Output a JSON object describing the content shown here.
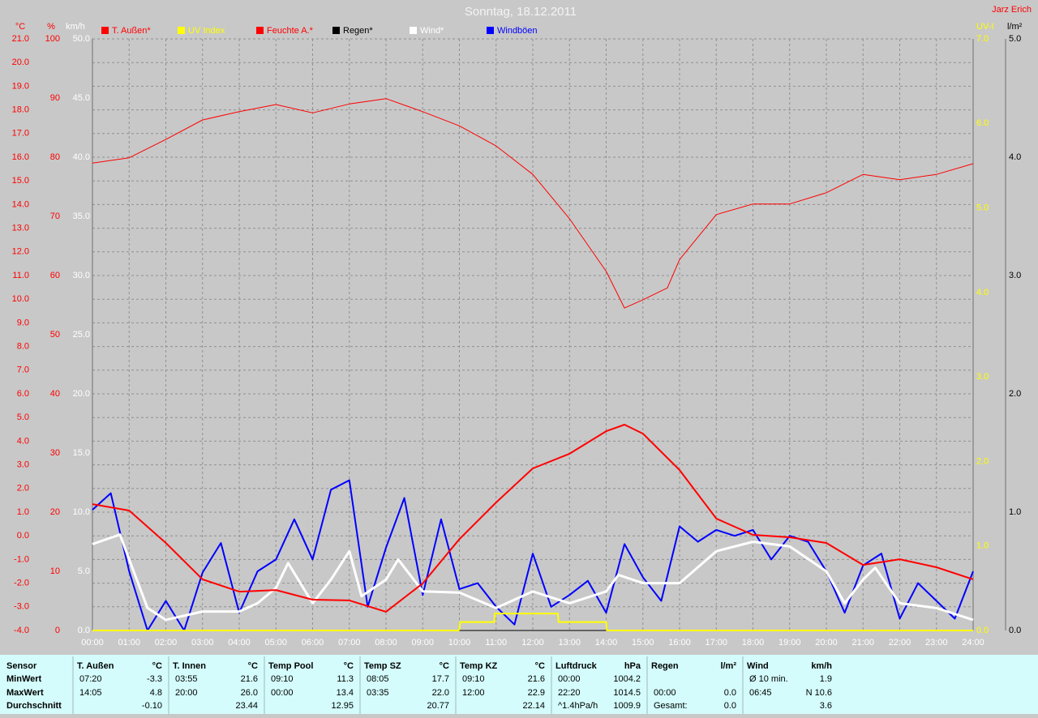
{
  "chart_data": {
    "type": "line",
    "title": "Sonntag, 18.12.2011",
    "owner": "Jarz Erich",
    "xlim": [
      "00:00",
      "24:00"
    ],
    "xticks": [
      "00:00",
      "01:00",
      "02:00",
      "03:00",
      "04:00",
      "05:00",
      "06:00",
      "07:00",
      "08:00",
      "09:00",
      "10:00",
      "11:00",
      "12:00",
      "13:00",
      "14:00",
      "15:00",
      "16:00",
      "17:00",
      "18:00",
      "19:00",
      "20:00",
      "21:00",
      "22:00",
      "23:00",
      "24:00"
    ],
    "axes": [
      {
        "label": "°C",
        "color": "#ff0000",
        "side": "left",
        "grid": true,
        "lim": [
          -4,
          21
        ],
        "ticks": [
          {
            "value": -4,
            "label": "-4.0"
          },
          {
            "value": -3,
            "label": "-3.0"
          },
          {
            "value": -2,
            "label": "-2.0"
          },
          {
            "value": -1,
            "label": "-1.0"
          },
          {
            "value": 0,
            "label": "0.0"
          },
          {
            "value": 1,
            "label": "1.0"
          },
          {
            "value": 2,
            "label": "2.0"
          },
          {
            "value": 3,
            "label": "3.0"
          },
          {
            "value": 4,
            "label": "4.0"
          },
          {
            "value": 5,
            "label": "5.0"
          },
          {
            "value": 6,
            "label": "6.0"
          },
          {
            "value": 7,
            "label": "7.0"
          },
          {
            "value": 8,
            "label": "8.0"
          },
          {
            "value": 9,
            "label": "9.0"
          },
          {
            "value": 10,
            "label": "10.0"
          },
          {
            "value": 11,
            "label": "11.0"
          },
          {
            "value": 12,
            "label": "12.0"
          },
          {
            "value": 13,
            "label": "13.0"
          },
          {
            "value": 14,
            "label": "14.0"
          },
          {
            "value": 15,
            "label": "15.0"
          },
          {
            "value": 16,
            "label": "16.0"
          },
          {
            "value": 17,
            "label": "17.0"
          },
          {
            "value": 18,
            "label": "18.0"
          },
          {
            "value": 19,
            "label": "19.0"
          },
          {
            "value": 20,
            "label": "20.0"
          },
          {
            "value": 21,
            "label": "21.0"
          }
        ]
      },
      {
        "label": "%",
        "color": "#ff0000",
        "side": "left",
        "lim": [
          0,
          100
        ],
        "ticks": [
          0,
          10,
          20,
          30,
          40,
          50,
          60,
          70,
          80,
          90,
          100
        ]
      },
      {
        "label": "km/h",
        "color": "#ffffff",
        "side": "left",
        "lim": [
          0,
          50
        ],
        "ticks": [
          {
            "value": 0,
            "label": "0.0"
          },
          {
            "value": 5,
            "label": "5.0"
          },
          {
            "value": 10,
            "label": "10.0"
          },
          {
            "value": 15,
            "label": "15.0"
          },
          {
            "value": 20,
            "label": "20.0"
          },
          {
            "value": 25,
            "label": "25.0"
          },
          {
            "value": 30,
            "label": "30.0"
          },
          {
            "value": 35,
            "label": "35.0"
          },
          {
            "value": 40,
            "label": "40.0"
          },
          {
            "value": 45,
            "label": "45.0"
          },
          {
            "value": 50,
            "label": "50.0"
          }
        ]
      },
      {
        "label": "UV-I",
        "color": "#ffff00",
        "side": "right",
        "lim": [
          0,
          7
        ],
        "ticks": [
          {
            "value": 0,
            "label": "0.0"
          },
          {
            "value": 1,
            "label": "1.0"
          },
          {
            "value": 2,
            "label": "2.0"
          },
          {
            "value": 3,
            "label": "3.0"
          },
          {
            "value": 4,
            "label": "4.0"
          },
          {
            "value": 5,
            "label": "5.0"
          },
          {
            "value": 6,
            "label": "6.0"
          },
          {
            "value": 7,
            "label": "7.0"
          }
        ]
      },
      {
        "label": "l/m²",
        "color": "#000000",
        "side": "right",
        "lim": [
          0,
          5
        ],
        "ticks": [
          {
            "value": 0,
            "label": "0.0"
          },
          {
            "value": 1,
            "label": "1.0"
          },
          {
            "value": 2,
            "label": "2.0"
          },
          {
            "value": 3,
            "label": "3.0"
          },
          {
            "value": 4,
            "label": "4.0"
          },
          {
            "value": 5,
            "label": "5.0"
          }
        ]
      }
    ],
    "series": [
      {
        "name": "T. Außen*",
        "color": "#ff0000",
        "axis": 0,
        "width": 2,
        "x": [
          "00:00",
          "01:00",
          "02:00",
          "03:00",
          "04:00",
          "05:00",
          "06:00",
          "07:00",
          "08:00",
          "09:00",
          "10:00",
          "11:00",
          "12:00",
          "13:00",
          "14:00",
          "14:30",
          "15:00",
          "16:00",
          "17:00",
          "18:00",
          "19:00",
          "20:00",
          "21:00",
          "22:00",
          "23:00",
          "24:00"
        ],
        "values": [
          1.34,
          1.07,
          -0.3,
          -1.84,
          -2.36,
          -2.29,
          -2.7,
          -2.73,
          -3.21,
          -2.01,
          -0.14,
          1.41,
          2.85,
          3.47,
          4.42,
          4.7,
          4.32,
          2.78,
          0.73,
          0.04,
          -0.06,
          -0.3,
          -1.23,
          -0.99,
          -1.33,
          -1.84
        ]
      },
      {
        "name": "UV Index",
        "color": "#ffff00",
        "axis": 3,
        "width": 2,
        "x": [
          "00:00",
          "10:00",
          "10:01",
          "10:57",
          "10:58",
          "12:41",
          "12:42",
          "14:00",
          "14:01",
          "24:00"
        ],
        "values": [
          0,
          0,
          0.1,
          0.1,
          0.2,
          0.2,
          0.1,
          0.1,
          0,
          0
        ]
      },
      {
        "name": "Feuchte A.*",
        "color": "#ff0000",
        "axis": 1,
        "width": 1,
        "x": [
          "00:00",
          "01:00",
          "02:00",
          "03:00",
          "04:00",
          "05:00",
          "06:00",
          "07:00",
          "08:00",
          "09:00",
          "10:00",
          "11:00",
          "12:00",
          "13:00",
          "14:00",
          "14:30",
          "15:00",
          "15:40",
          "16:00",
          "17:00",
          "18:00",
          "19:00",
          "20:00",
          "21:00",
          "22:00",
          "23:00",
          "24:00"
        ],
        "values": [
          79,
          79.9,
          83,
          86.3,
          87.7,
          88.9,
          87.5,
          89,
          89.9,
          87.7,
          85.3,
          81.9,
          77.1,
          69.6,
          60.7,
          54.5,
          55.9,
          57.9,
          62.7,
          70.3,
          72.1,
          72.1,
          74,
          77.1,
          76.2,
          77.1,
          78.9
        ]
      },
      {
        "name": "Regen*",
        "color": "#000000",
        "axis": 4,
        "width": 1,
        "x": [
          "10:00",
          "14:00"
        ],
        "values": [
          0,
          0
        ]
      },
      {
        "name": "Wind*",
        "color": "#ffffff",
        "axis": 2,
        "width": 3,
        "x": [
          "00:00",
          "00:45",
          "01:00",
          "01:30",
          "02:00",
          "03:00",
          "04:00",
          "04:30",
          "05:00",
          "05:20",
          "06:00",
          "06:30",
          "07:00",
          "07:20",
          "08:00",
          "08:20",
          "09:00",
          "10:00",
          "11:00",
          "12:00",
          "13:00",
          "14:00",
          "14:20",
          "15:00",
          "16:00",
          "17:00",
          "18:00",
          "19:00",
          "20:00",
          "20:30",
          "21:00",
          "21:20",
          "22:00",
          "23:00",
          "24:00"
        ],
        "values": [
          7.3,
          8.1,
          6,
          1.9,
          0.9,
          1.6,
          1.6,
          2.3,
          3.6,
          5.7,
          2.3,
          4.3,
          6.7,
          2.9,
          4.3,
          6,
          3.3,
          3.2,
          1.9,
          3.3,
          2.3,
          3.3,
          4.7,
          4,
          4,
          6.7,
          7.5,
          7.1,
          5,
          2.3,
          4.3,
          5.3,
          2.3,
          1.9,
          0.9
        ]
      },
      {
        "name": "Windböen",
        "color": "#0000ff",
        "axis": 2,
        "width": 2,
        "x": [
          "00:00",
          "00:30",
          "01:00",
          "01:30",
          "02:00",
          "02:30",
          "03:00",
          "03:30",
          "04:00",
          "04:30",
          "05:00",
          "05:30",
          "06:00",
          "06:30",
          "07:00",
          "07:30",
          "08:00",
          "08:30",
          "09:00",
          "09:30",
          "10:00",
          "10:30",
          "11:00",
          "11:30",
          "12:00",
          "12:30",
          "13:00",
          "13:30",
          "14:00",
          "14:30",
          "15:00",
          "15:30",
          "16:00",
          "16:30",
          "17:00",
          "17:30",
          "18:00",
          "18:30",
          "19:00",
          "19:30",
          "20:00",
          "20:30",
          "21:00",
          "21:30",
          "22:00",
          "22:30",
          "23:00",
          "23:30",
          "24:00"
        ],
        "values": [
          10.2,
          11.6,
          5,
          0,
          2.5,
          0,
          4.9,
          7.4,
          1.5,
          5,
          6,
          9.4,
          6,
          11.9,
          12.7,
          2,
          7,
          11.2,
          3,
          9.4,
          3.5,
          4,
          2,
          0.5,
          6.5,
          2,
          3,
          4.2,
          1.5,
          7.3,
          4.5,
          2.5,
          8.8,
          7.5,
          8.5,
          8,
          8.5,
          6,
          8,
          7.5,
          5,
          1.5,
          5.5,
          6.5,
          1,
          4,
          2.5,
          1,
          5
        ]
      }
    ]
  },
  "stats": {
    "row_labels": [
      "Sensor",
      "MinWert",
      "MaxWert",
      "Durchschnitt"
    ],
    "groups": [
      {
        "name": "T. Außen",
        "unit": "°C",
        "rows": [
          [
            "07:20",
            "-3.3"
          ],
          [
            "14:05",
            "4.8"
          ],
          [
            null,
            "-0.10"
          ]
        ]
      },
      {
        "name": "T. Innen",
        "unit": "°C",
        "rows": [
          [
            "03:55",
            "21.6"
          ],
          [
            "20:00",
            "26.0"
          ],
          [
            null,
            "23.44"
          ]
        ]
      },
      {
        "name": "Temp Pool",
        "unit": "°C",
        "rows": [
          [
            "09:10",
            "11.3"
          ],
          [
            "00:00",
            "13.4"
          ],
          [
            null,
            "12.95"
          ]
        ]
      },
      {
        "name": "Temp SZ",
        "unit": "°C",
        "rows": [
          [
            "08:05",
            "17.7"
          ],
          [
            "03:35",
            "22.0"
          ],
          [
            null,
            "20.77"
          ]
        ]
      },
      {
        "name": "Temp KZ",
        "unit": "°C",
        "rows": [
          [
            "09:10",
            "21.6"
          ],
          [
            "12:00",
            "22.9"
          ],
          [
            null,
            "22.14"
          ]
        ]
      },
      {
        "name": "Luftdruck",
        "unit": "hPa",
        "rows": [
          [
            "00:00",
            "1004.2"
          ],
          [
            "22:20",
            "1014.5"
          ],
          [
            "^1.4hPa/h",
            "1009.9"
          ]
        ]
      },
      {
        "name": "Regen",
        "unit": "l/m²",
        "rows": [
          [
            null,
            null
          ],
          [
            "00:00",
            "0.0"
          ],
          [
            "Gesamt:",
            "0.0"
          ]
        ]
      },
      {
        "name": "Wind",
        "unit": "km/h",
        "rows": [
          [
            "Ø 10 min.",
            "1.9"
          ],
          [
            "06:45",
            "N 10.6"
          ],
          [
            null,
            "3.6"
          ]
        ]
      }
    ]
  }
}
